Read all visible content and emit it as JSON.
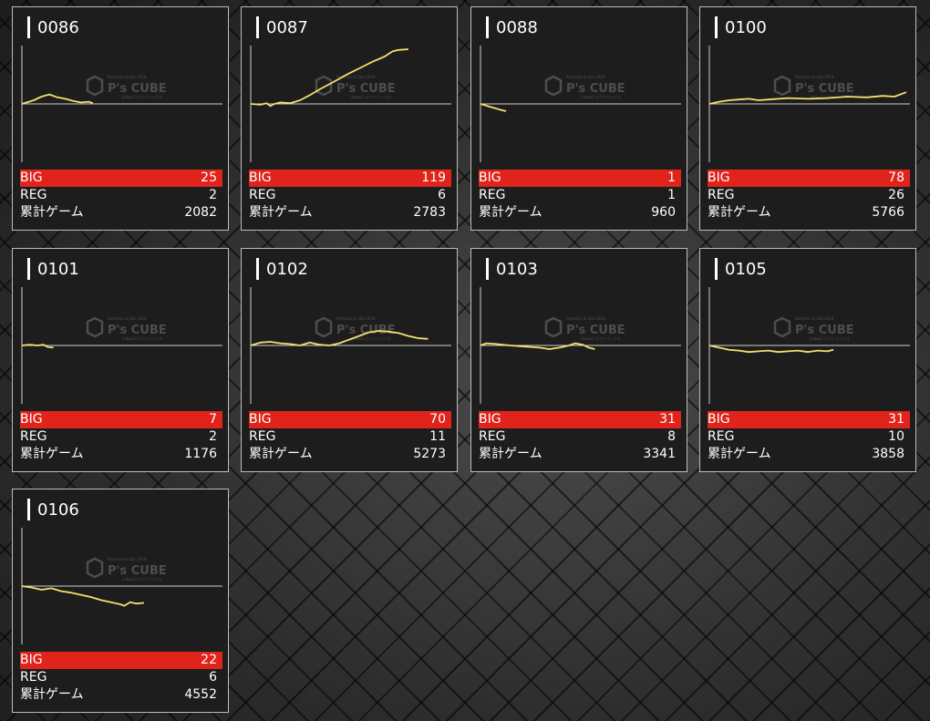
{
  "labels": {
    "big": "BIG",
    "reg": "REG",
    "total": "累計ゲーム"
  },
  "watermark": {
    "brand": "P's CUBE",
    "tagline": "Pachinko & Slot 2018",
    "sub": "anbox1 ビクトリックス"
  },
  "colors": {
    "accent": "#e0241b",
    "line": "#f5e06e",
    "card_bg": "#1d1d1d"
  },
  "machines": [
    {
      "id": "0086",
      "big": "25",
      "reg": "2",
      "games": "2082",
      "graph": [
        [
          0,
          0
        ],
        [
          0.06,
          0.05
        ],
        [
          0.1,
          0.1
        ],
        [
          0.14,
          0.13
        ],
        [
          0.18,
          0.09
        ],
        [
          0.22,
          0.07
        ],
        [
          0.26,
          0.04
        ],
        [
          0.3,
          0.02
        ],
        [
          0.34,
          0.03
        ],
        [
          0.36,
          0.01
        ]
      ]
    },
    {
      "id": "0087",
      "big": "119",
      "reg": "6",
      "games": "2783",
      "graph": [
        [
          0,
          0
        ],
        [
          0.05,
          -0.01
        ],
        [
          0.08,
          0.01
        ],
        [
          0.1,
          -0.03
        ],
        [
          0.12,
          0.0
        ],
        [
          0.15,
          0.02
        ],
        [
          0.2,
          0.01
        ],
        [
          0.25,
          0.05
        ],
        [
          0.3,
          0.12
        ],
        [
          0.35,
          0.2
        ],
        [
          0.42,
          0.3
        ],
        [
          0.5,
          0.42
        ],
        [
          0.56,
          0.5
        ],
        [
          0.62,
          0.58
        ],
        [
          0.68,
          0.65
        ],
        [
          0.72,
          0.72
        ],
        [
          0.75,
          0.74
        ],
        [
          0.8,
          0.75
        ]
      ]
    },
    {
      "id": "0088",
      "big": "1",
      "reg": "1",
      "games": "960",
      "graph": [
        [
          0,
          0
        ],
        [
          0.05,
          -0.04
        ],
        [
          0.1,
          -0.08
        ],
        [
          0.13,
          -0.1
        ]
      ]
    },
    {
      "id": "0100",
      "big": "78",
      "reg": "26",
      "games": "5766",
      "graph": [
        [
          0,
          0
        ],
        [
          0.05,
          0.03
        ],
        [
          0.1,
          0.05
        ],
        [
          0.15,
          0.06
        ],
        [
          0.2,
          0.07
        ],
        [
          0.25,
          0.05
        ],
        [
          0.3,
          0.06
        ],
        [
          0.4,
          0.08
        ],
        [
          0.5,
          0.07
        ],
        [
          0.6,
          0.08
        ],
        [
          0.7,
          0.1
        ],
        [
          0.8,
          0.09
        ],
        [
          0.88,
          0.11
        ],
        [
          0.94,
          0.1
        ],
        [
          1.0,
          0.16
        ]
      ]
    },
    {
      "id": "0101",
      "big": "7",
      "reg": "2",
      "games": "1176",
      "graph": [
        [
          0,
          0
        ],
        [
          0.04,
          0.01
        ],
        [
          0.08,
          0.0
        ],
        [
          0.11,
          0.01
        ],
        [
          0.13,
          -0.02
        ],
        [
          0.16,
          -0.03
        ]
      ]
    },
    {
      "id": "0102",
      "big": "70",
      "reg": "11",
      "games": "5273",
      "graph": [
        [
          0,
          0
        ],
        [
          0.05,
          0.04
        ],
        [
          0.1,
          0.05
        ],
        [
          0.15,
          0.03
        ],
        [
          0.2,
          0.02
        ],
        [
          0.25,
          0.0
        ],
        [
          0.3,
          0.04
        ],
        [
          0.35,
          0.01
        ],
        [
          0.4,
          0.0
        ],
        [
          0.45,
          0.03
        ],
        [
          0.5,
          0.08
        ],
        [
          0.55,
          0.13
        ],
        [
          0.6,
          0.18
        ],
        [
          0.65,
          0.2
        ],
        [
          0.7,
          0.19
        ],
        [
          0.75,
          0.17
        ],
        [
          0.8,
          0.13
        ],
        [
          0.85,
          0.1
        ],
        [
          0.9,
          0.09
        ]
      ]
    },
    {
      "id": "0103",
      "big": "31",
      "reg": "8",
      "games": "3341",
      "graph": [
        [
          0,
          0
        ],
        [
          0.03,
          0.03
        ],
        [
          0.08,
          0.02
        ],
        [
          0.15,
          0.0
        ],
        [
          0.2,
          -0.01
        ],
        [
          0.25,
          -0.02
        ],
        [
          0.3,
          -0.03
        ],
        [
          0.35,
          -0.05
        ],
        [
          0.4,
          -0.03
        ],
        [
          0.45,
          0.0
        ],
        [
          0.48,
          0.03
        ],
        [
          0.52,
          0.01
        ],
        [
          0.55,
          -0.03
        ],
        [
          0.58,
          -0.05
        ]
      ]
    },
    {
      "id": "0105",
      "big": "31",
      "reg": "10",
      "games": "3858",
      "graph": [
        [
          0,
          0
        ],
        [
          0.05,
          -0.03
        ],
        [
          0.1,
          -0.06
        ],
        [
          0.15,
          -0.07
        ],
        [
          0.2,
          -0.09
        ],
        [
          0.25,
          -0.08
        ],
        [
          0.3,
          -0.07
        ],
        [
          0.35,
          -0.09
        ],
        [
          0.4,
          -0.08
        ],
        [
          0.45,
          -0.07
        ],
        [
          0.5,
          -0.09
        ],
        [
          0.55,
          -0.07
        ],
        [
          0.6,
          -0.08
        ],
        [
          0.63,
          -0.06
        ]
      ]
    },
    {
      "id": "0106",
      "big": "22",
      "reg": "6",
      "games": "4552",
      "graph": [
        [
          0,
          0
        ],
        [
          0.05,
          -0.02
        ],
        [
          0.1,
          -0.05
        ],
        [
          0.15,
          -0.03
        ],
        [
          0.2,
          -0.07
        ],
        [
          0.25,
          -0.09
        ],
        [
          0.3,
          -0.12
        ],
        [
          0.35,
          -0.15
        ],
        [
          0.4,
          -0.19
        ],
        [
          0.45,
          -0.22
        ],
        [
          0.5,
          -0.25
        ],
        [
          0.52,
          -0.27
        ],
        [
          0.55,
          -0.22
        ],
        [
          0.58,
          -0.24
        ],
        [
          0.62,
          -0.23
        ]
      ]
    }
  ]
}
